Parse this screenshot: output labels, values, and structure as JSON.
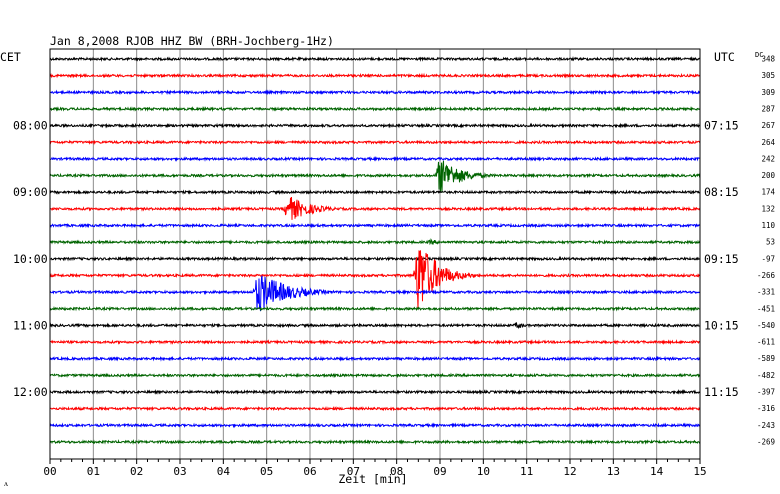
{
  "header": {
    "title": "Jan 8,2008  RJOB HHZ BW (BRH-Jochberg-1Hz)",
    "left_zone": "CET",
    "right_zone": "UTC",
    "dc_label": "DC"
  },
  "chart_data": {
    "type": "line",
    "title": "Jan 8,2008  RJOB HHZ BW (BRH-Jochberg-1Hz)",
    "xlabel": "Zeit [min]",
    "xlim": [
      0,
      15
    ],
    "x_ticks": [
      "00",
      "01",
      "02",
      "03",
      "04",
      "05",
      "06",
      "07",
      "08",
      "09",
      "10",
      "11",
      "12",
      "13",
      "14",
      "15"
    ],
    "grid": true,
    "colors": {
      "black": "#000000",
      "red": "#ff0000",
      "blue": "#0000ff",
      "green": "#006400"
    },
    "trace_color_cycle": [
      "black",
      "red",
      "blue",
      "green"
    ],
    "left_time_labels": [
      {
        "trace": 4,
        "label": "08:00"
      },
      {
        "trace": 8,
        "label": "09:00"
      },
      {
        "trace": 12,
        "label": "10:00"
      },
      {
        "trace": 16,
        "label": "11:00"
      },
      {
        "trace": 20,
        "label": "12:00"
      }
    ],
    "right_time_labels": [
      {
        "trace": 4,
        "label": "07:15"
      },
      {
        "trace": 8,
        "label": "08:15"
      },
      {
        "trace": 12,
        "label": "09:15"
      },
      {
        "trace": 16,
        "label": "10:15"
      },
      {
        "trace": 20,
        "label": "11:15"
      }
    ],
    "dc_offsets": [
      "348",
      "305",
      "309",
      "287",
      "267",
      "264",
      "242",
      "200",
      "174",
      "132",
      "110",
      "53",
      "-97",
      "-266",
      "-331",
      "-451",
      "-540",
      "-611",
      "-589",
      "-482",
      "-397",
      "-316",
      "-243",
      "-269"
    ],
    "events": [
      {
        "trace": 7,
        "minute": 9.0,
        "amplitude": 20,
        "duration": 1.4
      },
      {
        "trace": 9,
        "minute": 5.5,
        "amplitude": 14,
        "duration": 1.5
      },
      {
        "trace": 11,
        "minute": 8.8,
        "amplitude": 3,
        "duration": 0.6
      },
      {
        "trace": 13,
        "minute": 8.5,
        "amplitude": 40,
        "duration": 1.3
      },
      {
        "trace": 14,
        "minute": 4.8,
        "amplitude": 22,
        "duration": 2.0
      },
      {
        "trace": 16,
        "minute": 10.8,
        "amplitude": 4,
        "duration": 0.4
      },
      {
        "trace": 18,
        "minute": 14.0,
        "amplitude": 3,
        "duration": 0.3
      }
    ],
    "footer_mark": "ᴧ"
  }
}
